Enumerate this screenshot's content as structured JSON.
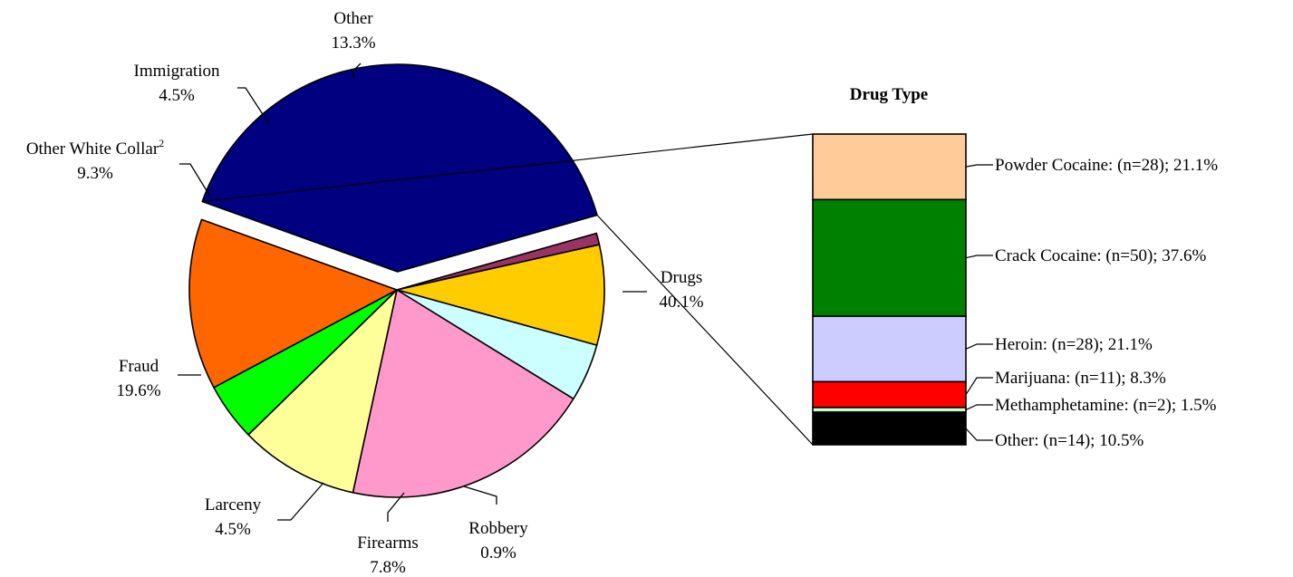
{
  "chart_data": [
    {
      "type": "pie",
      "unit": "%",
      "slices": [
        {
          "label": "Drugs",
          "value": 40.1,
          "color": "#000080",
          "exploded": true
        },
        {
          "label": "Robbery",
          "value": 0.9,
          "color": "#993366"
        },
        {
          "label": "Firearms",
          "value": 7.8,
          "color": "#FFCC00"
        },
        {
          "label": "Larceny",
          "value": 4.5,
          "color": "#CCFFFF"
        },
        {
          "label": "Fraud",
          "value": 19.6,
          "color": "#FF99CC"
        },
        {
          "label": "Other White Collar",
          "superscript": "2",
          "value": 9.3,
          "color": "#FFFF99"
        },
        {
          "label": "Immigration",
          "value": 4.5,
          "color": "#00FF00"
        },
        {
          "label": "Other",
          "value": 13.3,
          "color": "#FF6600"
        }
      ]
    },
    {
      "type": "bar",
      "stacked": true,
      "title": "Drug Type",
      "segments": [
        {
          "label": "Powder Cocaine: (n=28); 21.1%",
          "n": 28,
          "value": 21.1,
          "color": "#FFCC99"
        },
        {
          "label": "Crack Cocaine: (n=50); 37.6%",
          "n": 50,
          "value": 37.6,
          "color": "#008000"
        },
        {
          "label": "Heroin: (n=28); 21.1%",
          "n": 28,
          "value": 21.1,
          "color": "#CCCCFF"
        },
        {
          "label": "Marijuana: (n=11); 8.3%",
          "n": 11,
          "value": 8.3,
          "color": "#FF0000"
        },
        {
          "label": "Methamphetamine: (n=2); 1.5%",
          "n": 2,
          "value": 1.5,
          "color": "#CCFFCC"
        },
        {
          "label": "Other: (n=14); 10.5%",
          "n": 14,
          "value": 10.5,
          "color": "#000000"
        }
      ]
    }
  ]
}
